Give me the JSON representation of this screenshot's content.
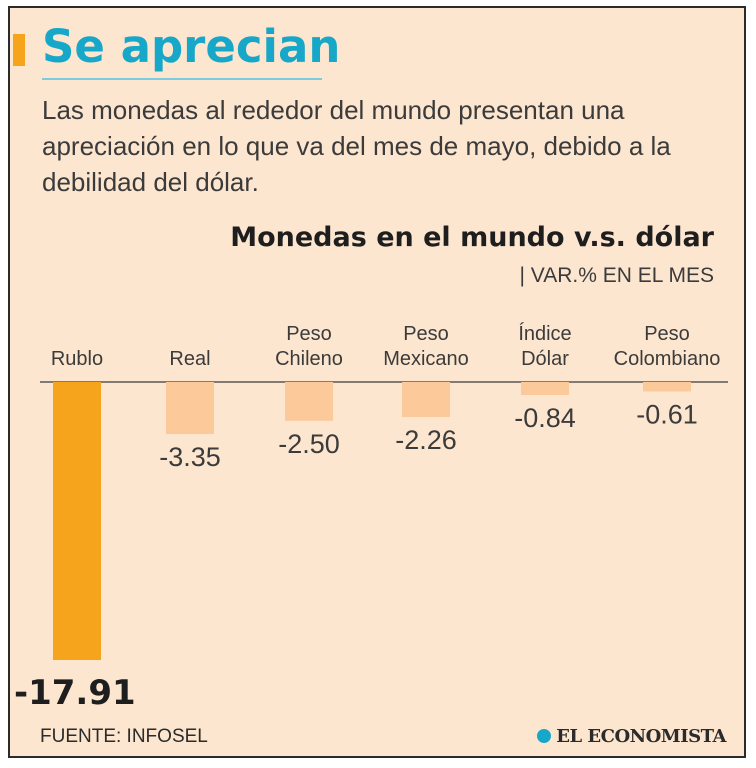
{
  "header": {
    "title": "Se aprecian",
    "subtitle": "Las monedas al rededor del mundo presentan una apreciación en lo que va del mes de mayo, debido a la debilidad del dólar."
  },
  "chart_data": {
    "type": "bar",
    "title": "Monedas en el mundo v.s. dólar",
    "unit_label": "| VAR.% EN EL MES",
    "categories": [
      [
        "Rublo"
      ],
      [
        "Real"
      ],
      [
        "Peso",
        "Chileno"
      ],
      [
        "Peso",
        "Mexicano"
      ],
      [
        "Índice",
        "Dólar"
      ],
      [
        "Peso",
        "Colombiano"
      ]
    ],
    "values": [
      -17.91,
      -3.35,
      -2.5,
      -2.26,
      -0.84,
      -0.61
    ],
    "value_labels": [
      "-17.91",
      "-3.35",
      "-2.50",
      "-2.26",
      "-0.84",
      "-0.61"
    ],
    "colors": {
      "highlight": "#f7a41d",
      "bar": "#fbc99a",
      "baseline": "#3b3b3b"
    },
    "ylim": [
      -17.91,
      0
    ],
    "grid": false
  },
  "footer": {
    "source": "FUENTE: INFOSEL",
    "brand": "EL ECONOMISTA"
  }
}
